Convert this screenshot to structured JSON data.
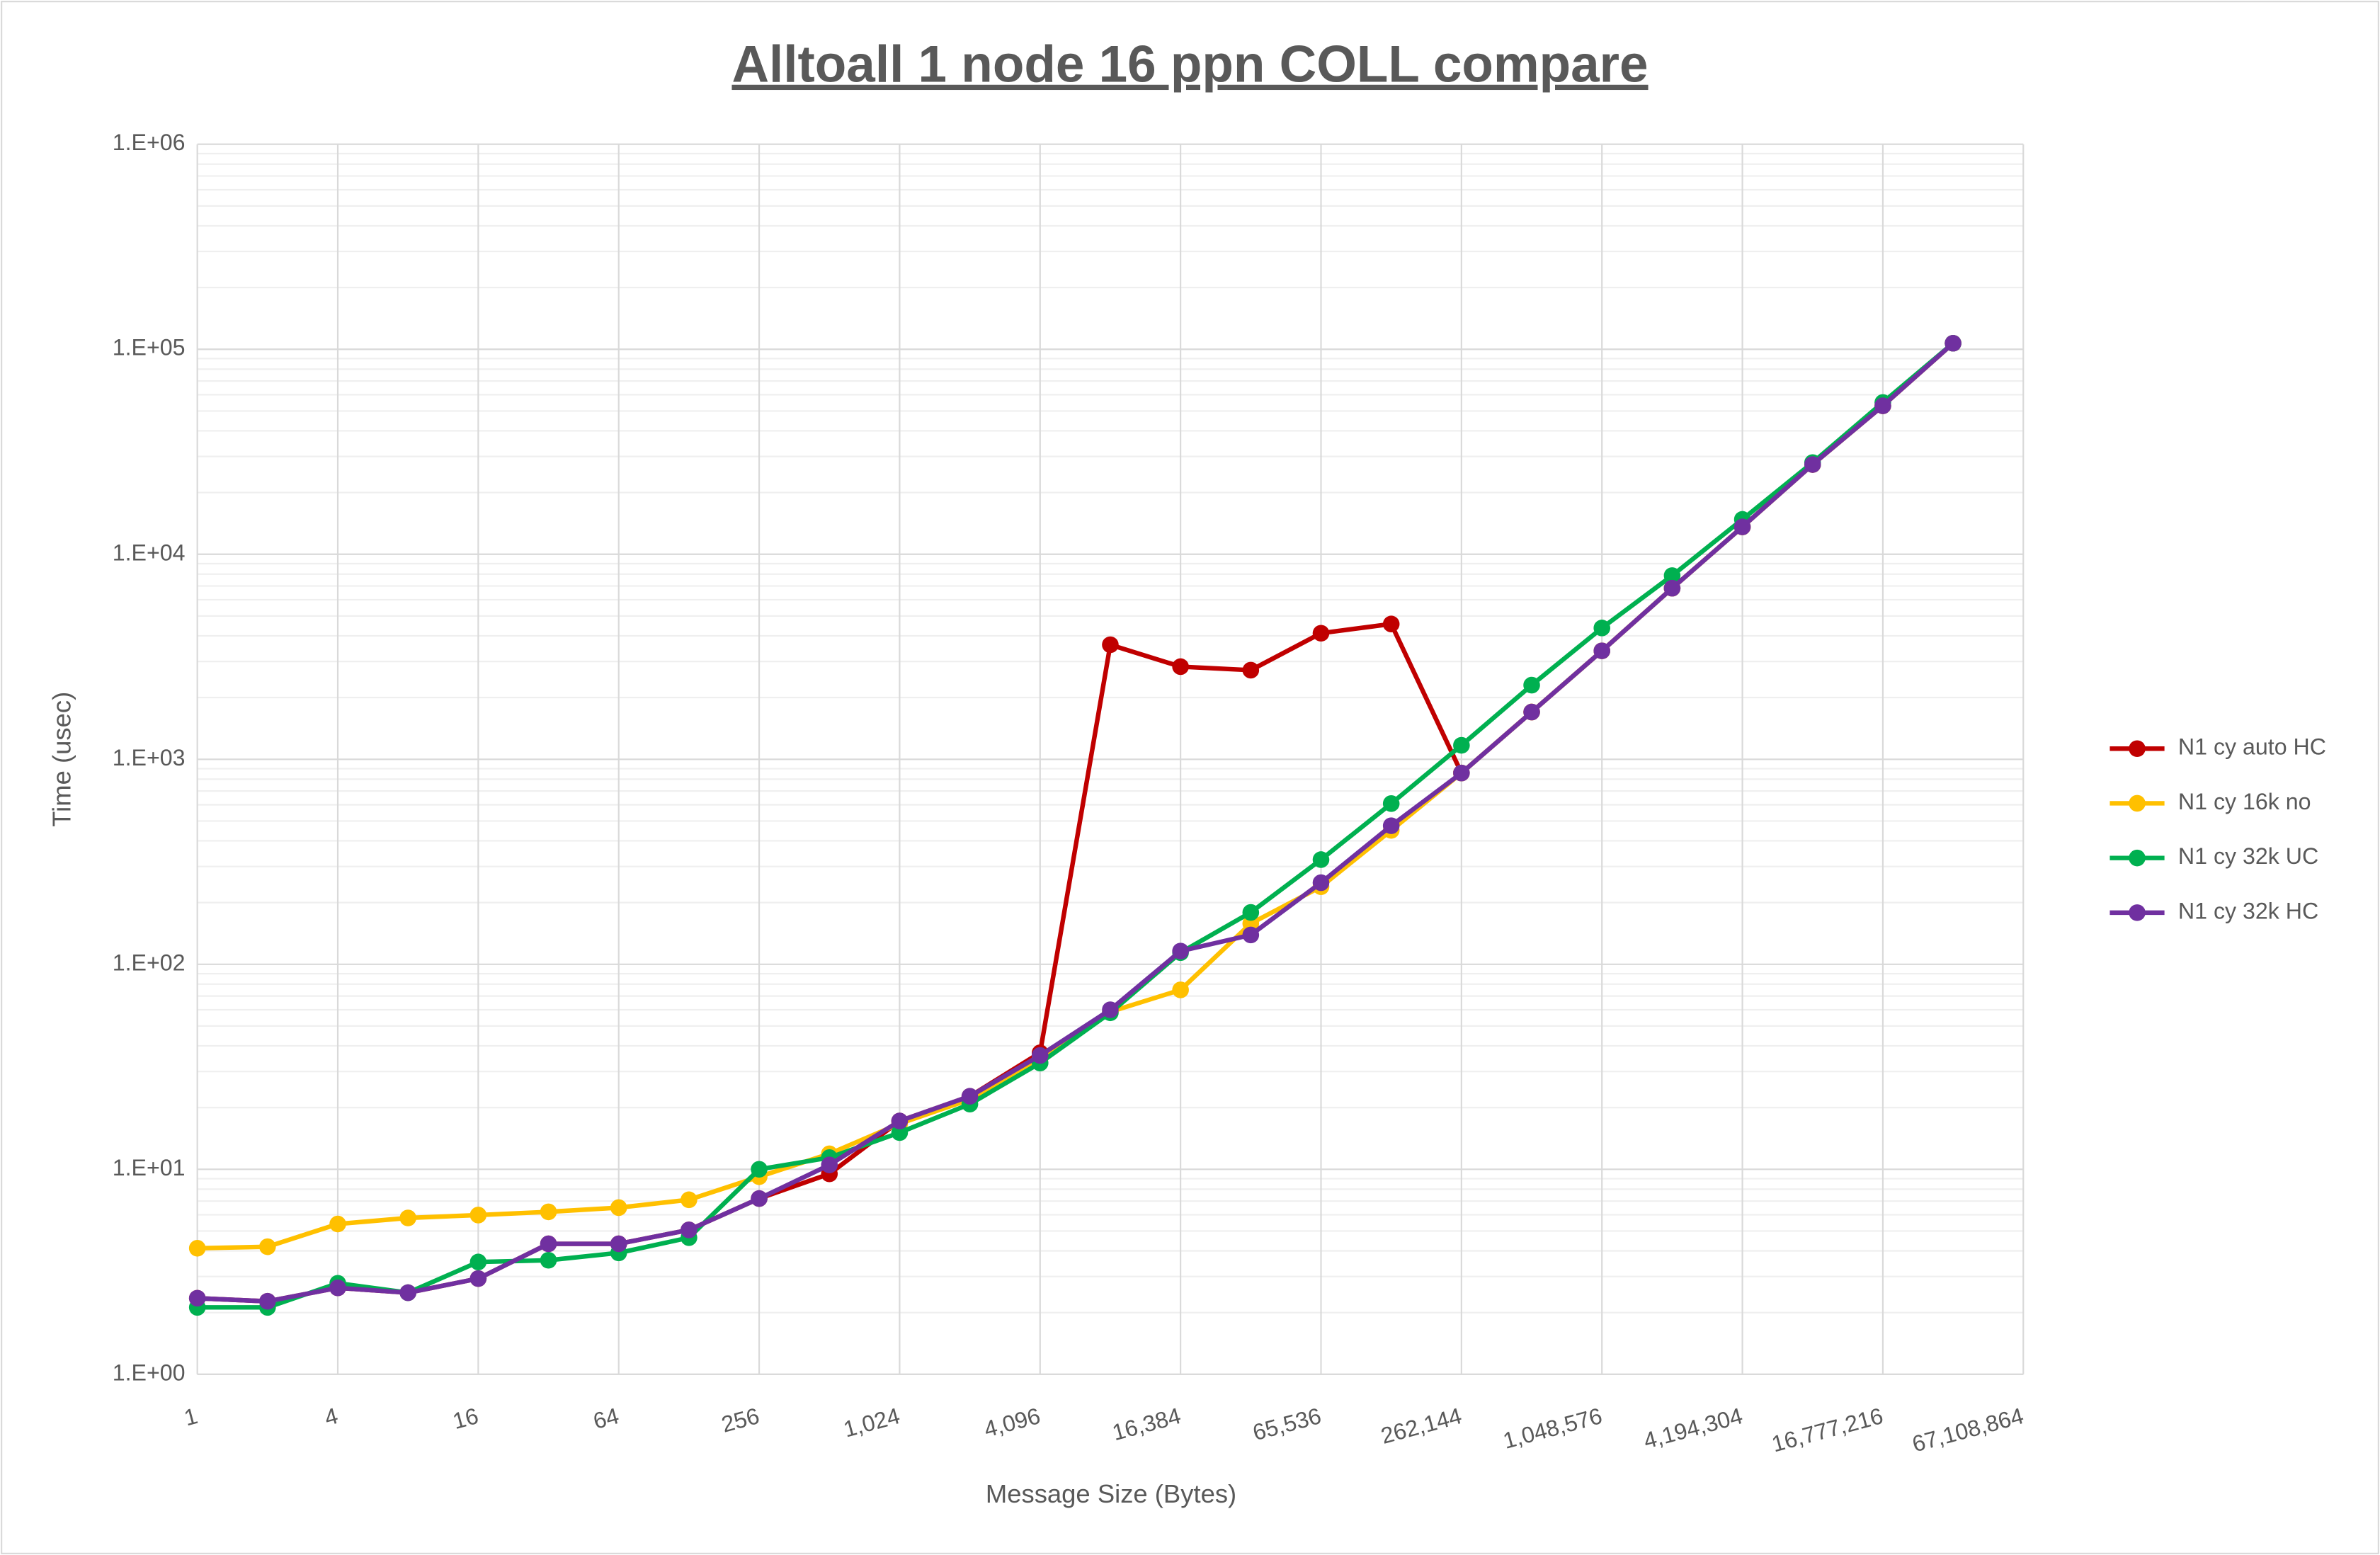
{
  "chart_data": {
    "type": "line",
    "title": "Alltoall 1 node 16 ppn COLL compare",
    "x_label": "Message Size (Bytes)",
    "y_label": "Time (usec)",
    "x": [
      1,
      2,
      4,
      8,
      16,
      32,
      64,
      128,
      256,
      512,
      1024,
      2048,
      4096,
      8192,
      16384,
      32768,
      65536,
      131072,
      262144,
      524288,
      1048576,
      2097152,
      4194304,
      8388608,
      16777216,
      33554432
    ],
    "x_log_base": 2,
    "y_log": true,
    "grid": true,
    "minor_grid": true,
    "legend": "right",
    "xlim": [
      1,
      67108864
    ],
    "xticks": [
      {
        "value": 1,
        "label": "1"
      },
      {
        "value": 4,
        "label": "4"
      },
      {
        "value": 16,
        "label": "16"
      },
      {
        "value": 64,
        "label": "64"
      },
      {
        "value": 256,
        "label": "256"
      },
      {
        "value": 1024,
        "label": "1,024"
      },
      {
        "value": 4096,
        "label": "4,096"
      },
      {
        "value": 16384,
        "label": "16,384"
      },
      {
        "value": 65536,
        "label": "65,536"
      },
      {
        "value": 262144,
        "label": "262,144"
      },
      {
        "value": 1048576,
        "label": "1,048,576"
      },
      {
        "value": 4194304,
        "label": "4,194,304"
      },
      {
        "value": 16777216,
        "label": "16,777,216"
      },
      {
        "value": 67108864,
        "label": "67,108,864"
      }
    ],
    "ylim": [
      1,
      1000000
    ],
    "yticks": [
      {
        "value": 1,
        "label": "1.E+00"
      },
      {
        "value": 10,
        "label": "1.E+01"
      },
      {
        "value": 100,
        "label": "1.E+02"
      },
      {
        "value": 1000,
        "label": "1.E+03"
      },
      {
        "value": 10000,
        "label": "1.E+04"
      },
      {
        "value": 100000,
        "label": "1.E+05"
      },
      {
        "value": 1000000,
        "label": "1.E+06"
      }
    ],
    "series": [
      {
        "name": "N1 cy auto HC",
        "color": "#c00000",
        "values": [
          2.35,
          2.27,
          2.64,
          2.5,
          2.93,
          4.33,
          4.33,
          5.06,
          7.2,
          9.5,
          17.2,
          22.7,
          37,
          3620,
          2830,
          2720,
          4120,
          4570,
          857,
          1700,
          3380,
          6830,
          13600,
          27400,
          53000,
          107000
        ]
      },
      {
        "name": "N1 cy 16k no",
        "color": "#ffc000",
        "values": [
          4.12,
          4.19,
          5.41,
          5.79,
          5.98,
          6.2,
          6.5,
          7.1,
          9.2,
          11.9,
          16.7,
          21.9,
          34.8,
          58.6,
          75,
          158,
          239,
          450,
          857,
          1700,
          3380,
          6830,
          13600,
          27400,
          53000,
          107000
        ]
      },
      {
        "name": "N1 cy 32k UC",
        "color": "#00b050",
        "values": [
          2.12,
          2.12,
          2.78,
          2.5,
          3.53,
          3.6,
          3.91,
          4.64,
          10,
          11.4,
          15.1,
          20.8,
          33,
          58,
          114,
          179,
          324,
          608,
          1170,
          2300,
          4370,
          7870,
          14800,
          28000,
          55000,
          107000
        ]
      },
      {
        "name": "N1 cy 32k HC",
        "color": "#7030a0",
        "values": [
          2.35,
          2.27,
          2.64,
          2.5,
          2.93,
          4.33,
          4.33,
          5.06,
          7.2,
          10.5,
          17.2,
          22.7,
          35.9,
          60,
          116,
          139,
          250,
          474,
          857,
          1700,
          3380,
          6830,
          13600,
          27400,
          53000,
          107000
        ]
      }
    ]
  }
}
